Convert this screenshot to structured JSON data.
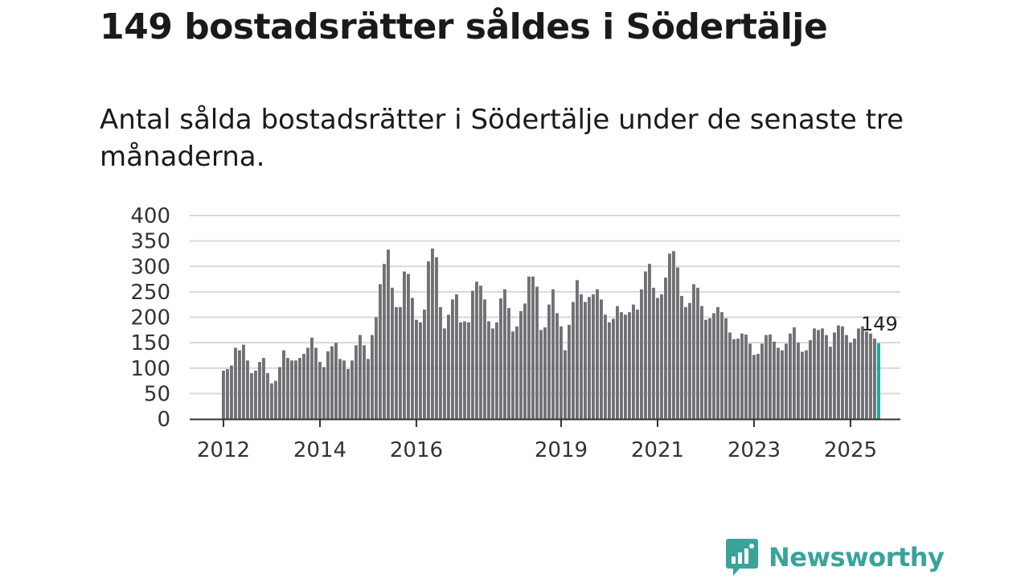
{
  "header": {
    "title": "149 bostadsrätter såldes i Södertälje",
    "subtitle": "Antal sålda bostadsrätter i Södertälje under de senaste tre månaderna."
  },
  "brand": {
    "name": "Newsworthy",
    "color": "#3aa39b"
  },
  "colors": {
    "bar": "#717074",
    "highlight": "#1aa6a0",
    "grid": "#d9d9d9",
    "axis": "#333333"
  },
  "chart_data": {
    "type": "bar",
    "title": "Antal sålda bostadsrätter i Södertälje under de senaste tre månaderna.",
    "xlabel": "",
    "ylabel": "",
    "ylim": [
      0,
      400
    ],
    "yticks": [
      0,
      50,
      100,
      150,
      200,
      250,
      300,
      350,
      400
    ],
    "xtick_labels": [
      {
        "label": "2012",
        "index": 0
      },
      {
        "label": "2014",
        "index": 24
      },
      {
        "label": "2016",
        "index": 48
      },
      {
        "label": "2019",
        "index": 84
      },
      {
        "label": "2021",
        "index": 108
      },
      {
        "label": "2023",
        "index": 132
      },
      {
        "label": "2025",
        "index": 156
      }
    ],
    "start": "2012-01",
    "grid": true,
    "highlight_last": true,
    "last_value_label": "149",
    "values": [
      95,
      98,
      105,
      140,
      135,
      146,
      115,
      90,
      95,
      112,
      120,
      90,
      70,
      75,
      102,
      135,
      120,
      115,
      115,
      120,
      128,
      140,
      160,
      140,
      112,
      102,
      133,
      143,
      150,
      118,
      115,
      98,
      115,
      145,
      165,
      145,
      118,
      165,
      200,
      265,
      305,
      333,
      258,
      220,
      220,
      290,
      285,
      238,
      195,
      190,
      215,
      310,
      335,
      318,
      220,
      178,
      205,
      235,
      245,
      190,
      192,
      190,
      252,
      270,
      262,
      235,
      192,
      178,
      190,
      237,
      255,
      218,
      172,
      182,
      212,
      227,
      280,
      280,
      260,
      175,
      180,
      225,
      255,
      208,
      182,
      135,
      185,
      230,
      273,
      245,
      230,
      240,
      245,
      255,
      235,
      205,
      190,
      197,
      222,
      210,
      205,
      210,
      225,
      215,
      255,
      290,
      305,
      258,
      238,
      245,
      278,
      325,
      330,
      298,
      242,
      220,
      228,
      265,
      258,
      222,
      195,
      198,
      208,
      220,
      210,
      198,
      170,
      157,
      158,
      168,
      166,
      148,
      126,
      128,
      148,
      165,
      166,
      152,
      140,
      135,
      148,
      168,
      180,
      150,
      132,
      135,
      155,
      178,
      175,
      178,
      165,
      142,
      170,
      184,
      182,
      165,
      150,
      158,
      178,
      182,
      172,
      168,
      158,
      149
    ]
  }
}
